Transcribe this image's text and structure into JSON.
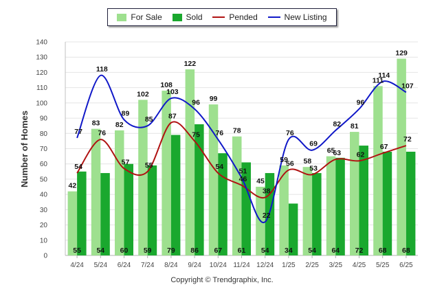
{
  "chart_data": {
    "type": "bar",
    "categories": [
      "4/24",
      "5/24",
      "6/24",
      "7/24",
      "8/24",
      "9/24",
      "10/24",
      "11/24",
      "12/24",
      "1/25",
      "2/25",
      "3/25",
      "4/25",
      "5/25",
      "6/25"
    ],
    "series": [
      {
        "name": "For Sale",
        "kind": "bar",
        "color": "#9ee08f",
        "values": [
          42,
          83,
          82,
          102,
          108,
          122,
          99,
          78,
          45,
          59,
          58,
          65,
          81,
          111,
          129
        ]
      },
      {
        "name": "Sold",
        "kind": "bar",
        "color": "#1aa82e",
        "values": [
          55,
          54,
          60,
          59,
          79,
          86,
          67,
          61,
          54,
          34,
          54,
          64,
          72,
          68,
          68
        ]
      },
      {
        "name": "Pended",
        "kind": "line",
        "color": "#b01212",
        "values": [
          54,
          76,
          57,
          55,
          87,
          75,
          54,
          46,
          38,
          56,
          53,
          63,
          62,
          67,
          72
        ]
      },
      {
        "name": "New Listing",
        "kind": "line",
        "color": "#1018c8",
        "values": [
          77,
          118,
          89,
          85,
          103,
          96,
          76,
          51,
          22,
          76,
          69,
          82,
          96,
          114,
          107
        ]
      }
    ],
    "ylabel": "Number of Homes",
    "xlabel": "",
    "ylim": [
      0,
      140
    ],
    "yticks": [
      0,
      10,
      20,
      30,
      40,
      50,
      60,
      70,
      80,
      90,
      100,
      110,
      120,
      130,
      140
    ],
    "grid": true,
    "legend_position": "top-center"
  },
  "copyright": "Copyright © Trendgraphix, Inc."
}
